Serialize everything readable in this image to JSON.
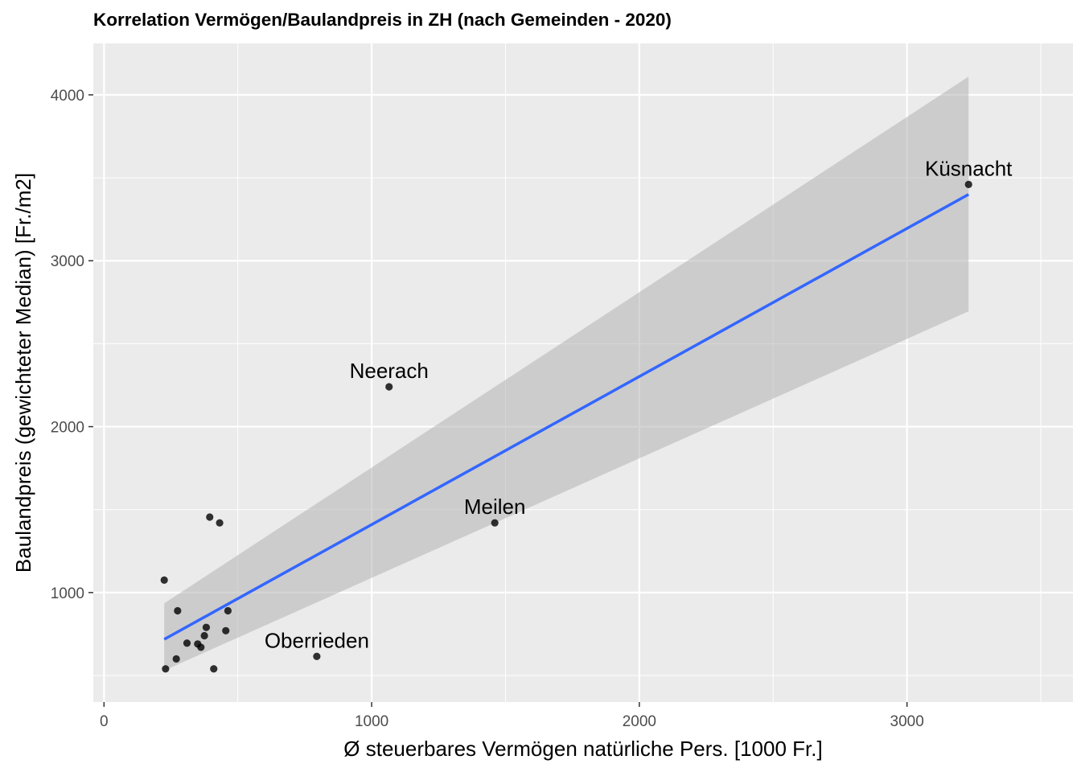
{
  "chart_data": {
    "type": "scatter",
    "title": "Korrelation Vermögen/Baulandpreis in ZH (nach Gemeinden - 2020)",
    "xlabel": "Ø steuerbares Vermögen natürliche Pers. [1000 Fr.]",
    "ylabel": "Baulandpreis (gewichteter Median) [Fr./m2]",
    "xlim": [
      -40,
      3620
    ],
    "ylim": [
      340,
      4310
    ],
    "x_ticks": [
      0,
      1000,
      2000,
      3000
    ],
    "y_ticks": [
      1000,
      2000,
      3000,
      4000
    ],
    "grid": true,
    "colors": {
      "panel": "#ebebeb",
      "grid": "#ffffff",
      "point": "#000000",
      "smooth_line": "#3366ff",
      "confidence_band": "#b3b3b3"
    },
    "points": [
      {
        "x": 225,
        "y": 1075
      },
      {
        "x": 230,
        "y": 540
      },
      {
        "x": 275,
        "y": 890
      },
      {
        "x": 270,
        "y": 600
      },
      {
        "x": 310,
        "y": 695
      },
      {
        "x": 350,
        "y": 690
      },
      {
        "x": 362,
        "y": 670
      },
      {
        "x": 375,
        "y": 740
      },
      {
        "x": 382,
        "y": 790
      },
      {
        "x": 395,
        "y": 1455
      },
      {
        "x": 410,
        "y": 540
      },
      {
        "x": 432,
        "y": 1420
      },
      {
        "x": 455,
        "y": 770
      },
      {
        "x": 463,
        "y": 890
      },
      {
        "x": 795,
        "y": 615,
        "label": "Oberrieden"
      },
      {
        "x": 1065,
        "y": 2240,
        "label": "Neerach"
      },
      {
        "x": 1460,
        "y": 1420,
        "label": "Meilen"
      },
      {
        "x": 3230,
        "y": 3460,
        "label": "Küsnacht"
      }
    ],
    "smooth": {
      "method": "linear",
      "x": [
        225,
        3230
      ],
      "y": [
        718,
        3400
      ],
      "ci_lower": [
        530,
        2695
      ],
      "ci_upper": [
        935,
        4110
      ]
    }
  }
}
